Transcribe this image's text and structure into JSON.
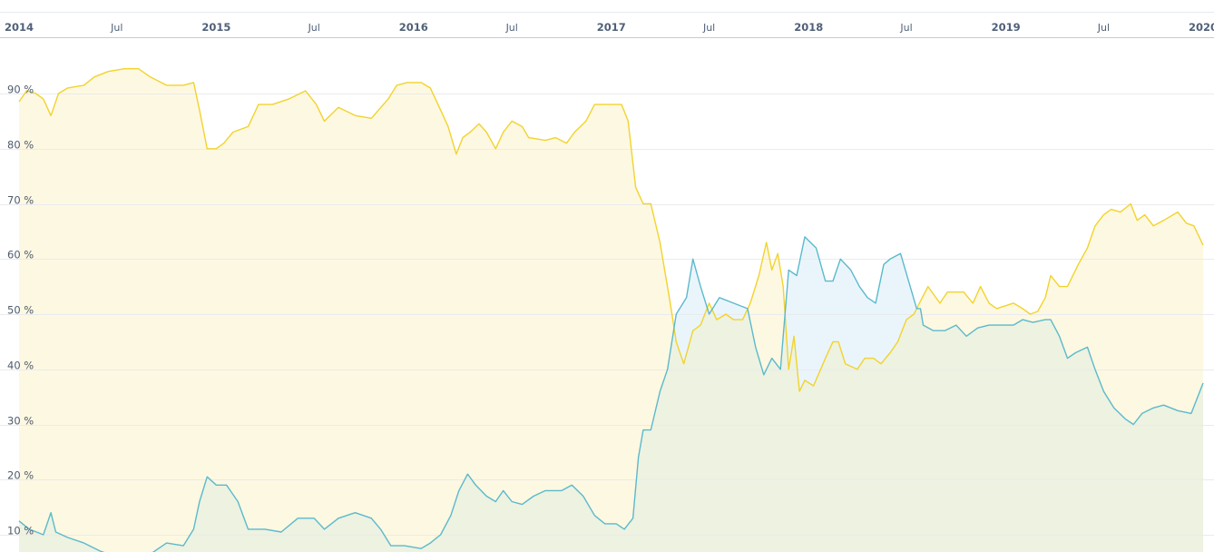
{
  "chart_data": {
    "type": "area",
    "x_ticks": [
      {
        "label": "2014",
        "major": true
      },
      {
        "label": "Jul",
        "major": false
      },
      {
        "label": "2015",
        "major": true
      },
      {
        "label": "Jul",
        "major": false
      },
      {
        "label": "2016",
        "major": true
      },
      {
        "label": "Jul",
        "major": false
      },
      {
        "label": "2017",
        "major": true
      },
      {
        "label": "Jul",
        "major": false
      },
      {
        "label": "2018",
        "major": true
      },
      {
        "label": "Jul",
        "major": false
      },
      {
        "label": "2019",
        "major": true
      },
      {
        "label": "Jul",
        "major": false
      },
      {
        "label": "2020",
        "major": true
      }
    ],
    "xlim": [
      "2014-01-01",
      "2020-01-01"
    ],
    "y_ticks": [
      "10 %",
      "20 %",
      "30 %",
      "40 %",
      "50 %",
      "60 %",
      "70 %",
      "80 %",
      "90 %"
    ],
    "y_tick_values": [
      10,
      20,
      30,
      40,
      50,
      60,
      70,
      80,
      90
    ],
    "ylim": [
      6.5,
      100
    ],
    "grid": true,
    "series": [
      {
        "color": "#f2d32c",
        "fill": "#fdf8e1",
        "points": [
          [
            "2014-01-01",
            88.5
          ],
          [
            "2014-01-15",
            90.5
          ],
          [
            "2014-02-01",
            90
          ],
          [
            "2014-02-15",
            89
          ],
          [
            "2014-03-01",
            86
          ],
          [
            "2014-03-15",
            90
          ],
          [
            "2014-04-01",
            91
          ],
          [
            "2014-05-01",
            91.5
          ],
          [
            "2014-05-20",
            93
          ],
          [
            "2014-06-15",
            94
          ],
          [
            "2014-07-15",
            94.5
          ],
          [
            "2014-08-10",
            94.5
          ],
          [
            "2014-09-01",
            93
          ],
          [
            "2014-10-01",
            91.5
          ],
          [
            "2014-11-01",
            91.5
          ],
          [
            "2014-11-20",
            92
          ],
          [
            "2014-12-01",
            87
          ],
          [
            "2014-12-15",
            80
          ],
          [
            "2015-01-01",
            80
          ],
          [
            "2015-01-15",
            81
          ],
          [
            "2015-02-01",
            83
          ],
          [
            "2015-03-01",
            84
          ],
          [
            "2015-03-20",
            88
          ],
          [
            "2015-04-15",
            88
          ],
          [
            "2015-05-15",
            89
          ],
          [
            "2015-06-15",
            90.5
          ],
          [
            "2015-07-05",
            88
          ],
          [
            "2015-07-20",
            85
          ],
          [
            "2015-08-15",
            87.5
          ],
          [
            "2015-09-15",
            86
          ],
          [
            "2015-10-15",
            85.5
          ],
          [
            "2015-11-15",
            89
          ],
          [
            "2015-12-01",
            91.5
          ],
          [
            "2015-12-20",
            92
          ],
          [
            "2016-01-15",
            92
          ],
          [
            "2016-02-01",
            91
          ],
          [
            "2016-02-20",
            87
          ],
          [
            "2016-03-05",
            84
          ],
          [
            "2016-03-20",
            79
          ],
          [
            "2016-04-01",
            82
          ],
          [
            "2016-04-15",
            83
          ],
          [
            "2016-05-01",
            84.5
          ],
          [
            "2016-05-15",
            83
          ],
          [
            "2016-06-01",
            80
          ],
          [
            "2016-06-15",
            83
          ],
          [
            "2016-07-01",
            85
          ],
          [
            "2016-07-20",
            84
          ],
          [
            "2016-08-01",
            82
          ],
          [
            "2016-09-01",
            81.5
          ],
          [
            "2016-09-20",
            82
          ],
          [
            "2016-10-10",
            81
          ],
          [
            "2016-10-25",
            83
          ],
          [
            "2016-11-15",
            85
          ],
          [
            "2016-12-01",
            88
          ],
          [
            "2016-12-20",
            88
          ],
          [
            "2017-01-20",
            88
          ],
          [
            "2017-02-01",
            85
          ],
          [
            "2017-02-15",
            73
          ],
          [
            "2017-03-01",
            70
          ],
          [
            "2017-03-15",
            70
          ],
          [
            "2017-04-01",
            63
          ],
          [
            "2017-04-20",
            52
          ],
          [
            "2017-05-01",
            45
          ],
          [
            "2017-05-15",
            41
          ],
          [
            "2017-06-01",
            47
          ],
          [
            "2017-06-15",
            48
          ],
          [
            "2017-07-01",
            52
          ],
          [
            "2017-07-15",
            49
          ],
          [
            "2017-08-01",
            50
          ],
          [
            "2017-08-15",
            49
          ],
          [
            "2017-09-01",
            49
          ],
          [
            "2017-09-15",
            52
          ],
          [
            "2017-10-01",
            57
          ],
          [
            "2017-10-15",
            63
          ],
          [
            "2017-10-25",
            58
          ],
          [
            "2017-11-05",
            61
          ],
          [
            "2017-11-15",
            55
          ],
          [
            "2017-11-25",
            40
          ],
          [
            "2017-12-05",
            46
          ],
          [
            "2017-12-15",
            36
          ],
          [
            "2017-12-25",
            38
          ],
          [
            "2018-01-10",
            37
          ],
          [
            "2018-02-01",
            42
          ],
          [
            "2018-02-15",
            45
          ],
          [
            "2018-02-25",
            45
          ],
          [
            "2018-03-10",
            41
          ],
          [
            "2018-04-01",
            40
          ],
          [
            "2018-04-15",
            42
          ],
          [
            "2018-05-01",
            42
          ],
          [
            "2018-05-15",
            41
          ],
          [
            "2018-06-01",
            43
          ],
          [
            "2018-06-15",
            45
          ],
          [
            "2018-07-01",
            49
          ],
          [
            "2018-07-15",
            50
          ],
          [
            "2018-07-25",
            52
          ],
          [
            "2018-08-10",
            55
          ],
          [
            "2018-09-01",
            52
          ],
          [
            "2018-09-15",
            54
          ],
          [
            "2018-10-15",
            54
          ],
          [
            "2018-11-01",
            52
          ],
          [
            "2018-11-15",
            55
          ],
          [
            "2018-12-01",
            52
          ],
          [
            "2018-12-15",
            51
          ],
          [
            "2019-01-15",
            52
          ],
          [
            "2019-02-01",
            51
          ],
          [
            "2019-02-15",
            50
          ],
          [
            "2019-03-01",
            50.5
          ],
          [
            "2019-03-15",
            53
          ],
          [
            "2019-03-25",
            57
          ],
          [
            "2019-04-10",
            55
          ],
          [
            "2019-04-25",
            55
          ],
          [
            "2019-05-15",
            59
          ],
          [
            "2019-06-01",
            62
          ],
          [
            "2019-06-15",
            66
          ],
          [
            "2019-07-01",
            68
          ],
          [
            "2019-07-15",
            69
          ],
          [
            "2019-08-01",
            68.5
          ],
          [
            "2019-08-20",
            70
          ],
          [
            "2019-09-01",
            67
          ],
          [
            "2019-09-15",
            68
          ],
          [
            "2019-10-01",
            66
          ],
          [
            "2019-10-20",
            67
          ],
          [
            "2019-11-15",
            68.5
          ],
          [
            "2019-12-01",
            66.5
          ],
          [
            "2019-12-15",
            66
          ],
          [
            "2020-01-01",
            62.5
          ]
        ]
      },
      {
        "color": "#5bb9cd",
        "fill": "#e8f4fb",
        "points": [
          [
            "2014-01-01",
            12.5
          ],
          [
            "2014-01-20",
            11
          ],
          [
            "2014-02-15",
            10
          ],
          [
            "2014-03-01",
            14
          ],
          [
            "2014-03-10",
            10.5
          ],
          [
            "2014-04-01",
            9.5
          ],
          [
            "2014-05-01",
            8.5
          ],
          [
            "2014-06-01",
            7
          ],
          [
            "2014-07-01",
            6
          ],
          [
            "2014-08-01",
            5.5
          ],
          [
            "2014-09-01",
            6.5
          ],
          [
            "2014-10-01",
            8.5
          ],
          [
            "2014-11-01",
            8
          ],
          [
            "2014-11-20",
            11
          ],
          [
            "2014-12-01",
            16
          ],
          [
            "2014-12-15",
            20.5
          ],
          [
            "2015-01-01",
            19
          ],
          [
            "2015-01-20",
            19
          ],
          [
            "2015-02-10",
            16
          ],
          [
            "2015-03-01",
            11
          ],
          [
            "2015-04-01",
            11
          ],
          [
            "2015-05-01",
            10.5
          ],
          [
            "2015-06-01",
            13
          ],
          [
            "2015-07-01",
            13
          ],
          [
            "2015-07-20",
            11
          ],
          [
            "2015-08-15",
            13
          ],
          [
            "2015-09-15",
            14
          ],
          [
            "2015-10-15",
            13
          ],
          [
            "2015-11-01",
            11
          ],
          [
            "2015-11-20",
            8
          ],
          [
            "2015-12-15",
            8
          ],
          [
            "2016-01-15",
            7.5
          ],
          [
            "2016-02-01",
            8.5
          ],
          [
            "2016-02-20",
            10
          ],
          [
            "2016-03-10",
            13.5
          ],
          [
            "2016-03-25",
            18
          ],
          [
            "2016-04-10",
            21
          ],
          [
            "2016-04-25",
            19
          ],
          [
            "2016-05-15",
            17
          ],
          [
            "2016-06-01",
            16
          ],
          [
            "2016-06-15",
            18
          ],
          [
            "2016-07-01",
            16
          ],
          [
            "2016-07-20",
            15.5
          ],
          [
            "2016-08-10",
            17
          ],
          [
            "2016-09-01",
            18
          ],
          [
            "2016-10-01",
            18
          ],
          [
            "2016-10-20",
            19
          ],
          [
            "2016-11-10",
            17
          ],
          [
            "2016-12-01",
            13.5
          ],
          [
            "2016-12-20",
            12
          ],
          [
            "2017-01-10",
            12
          ],
          [
            "2017-01-25",
            11
          ],
          [
            "2017-02-10",
            13
          ],
          [
            "2017-02-20",
            24
          ],
          [
            "2017-03-01",
            29
          ],
          [
            "2017-03-15",
            29
          ],
          [
            "2017-04-01",
            36
          ],
          [
            "2017-04-15",
            40
          ],
          [
            "2017-05-01",
            50
          ],
          [
            "2017-05-20",
            53
          ],
          [
            "2017-06-01",
            60
          ],
          [
            "2017-06-15",
            55
          ],
          [
            "2017-07-01",
            50
          ],
          [
            "2017-07-20",
            53
          ],
          [
            "2017-08-15",
            52
          ],
          [
            "2017-09-10",
            51
          ],
          [
            "2017-09-25",
            44
          ],
          [
            "2017-10-10",
            39
          ],
          [
            "2017-10-25",
            42
          ],
          [
            "2017-11-10",
            40
          ],
          [
            "2017-11-25",
            58
          ],
          [
            "2017-12-10",
            57
          ],
          [
            "2017-12-25",
            64
          ],
          [
            "2018-01-15",
            62
          ],
          [
            "2018-02-01",
            56
          ],
          [
            "2018-02-15",
            56
          ],
          [
            "2018-03-01",
            60
          ],
          [
            "2018-03-20",
            58
          ],
          [
            "2018-04-05",
            55
          ],
          [
            "2018-04-20",
            53
          ],
          [
            "2018-05-05",
            52
          ],
          [
            "2018-05-20",
            59
          ],
          [
            "2018-06-01",
            60
          ],
          [
            "2018-06-20",
            61
          ],
          [
            "2018-07-05",
            56
          ],
          [
            "2018-07-20",
            51
          ],
          [
            "2018-07-27",
            51
          ],
          [
            "2018-08-01",
            48
          ],
          [
            "2018-08-20",
            47
          ],
          [
            "2018-09-10",
            47
          ],
          [
            "2018-10-01",
            48
          ],
          [
            "2018-10-20",
            46
          ],
          [
            "2018-11-10",
            47.5
          ],
          [
            "2018-12-01",
            48
          ],
          [
            "2018-12-20",
            48
          ],
          [
            "2019-01-15",
            48
          ],
          [
            "2019-02-01",
            49
          ],
          [
            "2019-02-20",
            48.5
          ],
          [
            "2019-03-15",
            49
          ],
          [
            "2019-03-25",
            49
          ],
          [
            "2019-04-10",
            46
          ],
          [
            "2019-04-25",
            42
          ],
          [
            "2019-05-10",
            43
          ],
          [
            "2019-06-01",
            44
          ],
          [
            "2019-06-15",
            40
          ],
          [
            "2019-07-01",
            36
          ],
          [
            "2019-07-20",
            33
          ],
          [
            "2019-08-10",
            31
          ],
          [
            "2019-08-25",
            30
          ],
          [
            "2019-09-10",
            32
          ],
          [
            "2019-10-01",
            33
          ],
          [
            "2019-10-20",
            33.5
          ],
          [
            "2019-11-15",
            32.5
          ],
          [
            "2019-12-10",
            32
          ],
          [
            "2020-01-01",
            37.5
          ]
        ]
      }
    ]
  }
}
